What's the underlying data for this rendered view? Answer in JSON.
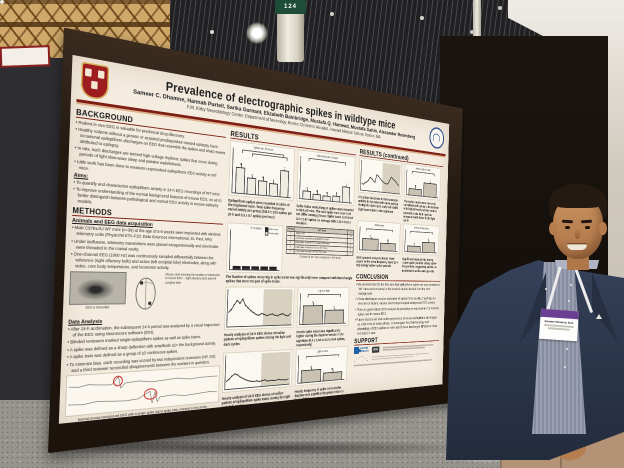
{
  "scene": {
    "column_sign_label": "124",
    "badge": {
      "name": "Sameer Dhamne, M.S."
    }
  },
  "poster": {
    "header": {
      "title": "Prevalence of electrographic spikes in wildtype mice",
      "authors": "Sameer C. Dhamne, Hannah Purtell, Sarika Gurnani, Elizabeth Bainbridge, Mustafa Q. Hameed, Mustafa Sahin, Alexander Rotenberg",
      "affiliation": "F.M. Kirby Neurobiology Center, Department of Neurology, Boston Children's Hospital, Harvard Medical School, Boston, MA"
    },
    "background": {
      "heading": "BACKGROUND",
      "bullets": [
        "Rodent in vivo EEG is valuable for preclinical drug discovery.",
        "Healthy rodents without a genetic or acquired predisposition toward epilepsy have occasional epileptiform discharges on EEG that resemble the spikes and sharp waves attributed to epilepsy.",
        "In rats, such discharges are termed high-voltage rhythmic spikes that occur during periods of light slow-wave sleep and passive wakefulness.",
        "Little work has been done to measure unprovoked epileptiform EEG activity in WT mice."
      ],
      "aims_label": "Aims:",
      "aims": [
        "To quantify and characterize epileptiform activity in 24-h EEG recordings of WT mice",
        "To improve understanding of the normal background features of mouse EEG, so as to better distinguish between pathological and normal EEG activity in mouse epilepsy models."
      ]
    },
    "methods": {
      "heading": "METHODS",
      "sub1": "Animals and EEG data acquisition",
      "bullets1": [
        "Male C57BL/6J WT mice (n=36) at the age of 5-6 weeks were implanted with wireless telemetry units (PhysioTel ETA-F10; Data Sciences International, St. Paul, MN).",
        "Under isoflurane, telemetry transmitters were placed intraperitoneally and electrodes were threaded in the cranial cavity.",
        "One-channel EEG (1000 Hz) was continuously sampled differentially between the reference (right olfactory bulb) and active (left occipital lobe) electrodes, along with video, core body temperature, and locomotor activity."
      ],
      "eeg_label": "EEG to transmitter",
      "skull_caption": "Mouse skull showing the location of electrodes to record EEG – right olfactory bulb and left occipital lobe",
      "sub2": "Data Analysis",
      "bullets2": [
        "After 24-h acclimation, the subsequent 24-h period was analyzed by a visual inspection of the EEG using Neuroscore software (DSI).",
        "Blinded reviewers marked single epileptiform spikes as well as spike trains.",
        "A spike was defined as a sharp deflection with amplitude ≥2× the background activity.",
        "A spike train was defined as a group of ≥3 continuous spikes.",
        "To minimize bias, each recording was scored by two independent reviewers (HP, SG) and a third reviewer reconciled disagreements between the markers in question."
      ],
      "trace_caption": "Normal mouse background EEG with a single spike and a spike train, marked in red circles"
    },
    "results": {
      "heading": "RESULTS",
      "fig1_title": "Spikes per 24 hours",
      "fig2_title": "Spike trains per 24 hours",
      "cap1": "Epileptiform spikes were recorded in 100% of the implanted mice. Total spike frequency varied widely per group (240.5 ± 13.5 spikes per 24 h and 0.3 ± 0.7 spikes per hour)",
      "cap2": "Spike trains containing ≥3 spikes were recorded in 90% of mice. The total spike train count did not differ among groups. Spike trains contained 3.4 ± 0.67 spikes on average with 0.42 ± 0.02 s duration.",
      "fig3_title": "% of spikes",
      "legend_single": "Single spikes",
      "legend_train": "Spike trains",
      "cap3": "The fraction of spikes occurring in spike trains was significantly lower compared with that of single spikes that were not part of spike trains.",
      "table": {
        "rows": [
          [
            "Group",
            "WT mice",
            "n"
          ],
          [
            "1",
            "Naive C57",
            "12"
          ],
          [
            "2",
            "Littermate controls of Shank3 KO mice",
            "7"
          ],
          [
            "3",
            "Littermate controls of Cntnap2 KO mice",
            "6"
          ],
          [
            "4",
            "Littermate controls of Dnm1 KO mice",
            "6"
          ],
          [
            "5",
            "Littermate controls of Fmr1 KO mice",
            "5"
          ]
        ],
        "caption": "Cohorts of WT mice analyzed in the study"
      },
      "fig4_title": "Hourly spikes (24 h)",
      "fig5_title": "Light vs dark",
      "cap4": "Hourly analysis of 24-h EEG shows circadian pattern of epileptiform spikes during the light and dark cycles",
      "cap5": "Hourly spike count was significantly higher during the daytime versus in the nighttime (0.4 ± 0.04 vs 0.3 ± 0.04 spikes, respectively)",
      "fig6_title": "Hourly spike trains (24 h)",
      "fig7_title": "Light vs dark",
      "cap6": "Hourly analysis of 24-h EEG shows circadian pattern of epileptiform spike trains during the light and dark cycles",
      "cap7": "Hourly frequency of spike trains in the daytime was significantly greater than in the nighttime"
    },
    "results2": {
      "heading": "RESULTS (continued)",
      "figA_title": "Hourly activity (24 h)",
      "figB_title": "Activity: light vs dark",
      "capA": "Circadian variations in the locomotor activity in the mice with more activity during the dark cycle and predictable high locomotion in the nighttime",
      "capB": "The spike counts were inversely correlated with animal's locomotion with higher hourly activity counts reported in the dark cycle as compared with those in the light cycle",
      "figC_title": "Delta power",
      "figD_title": "Activity during spikes",
      "capC": "EEG spectral analysis shows lower power in the delta frequency band (1–4 Hz) during 'active spike' periods",
      "capD": "Significant hyperactivity during 'active spike' periods versus spike-free periods, suggesting spikes are incidental to active wake periods"
    },
    "conclusion": {
      "heading": "CONCLUSION",
      "bullets": [
        "We demonstrate for the first time that epileptiform spikes are very common in WT mice and universal in the studied strains derived from the C57 background.",
        "These discharges may be indicative of epileptiform activity or perhaps an element of normal murine electrophysiological background EEG activity.",
        "This can guide future EEG analysis by providing an expectation of a nominal spike rate in mouse EEG.",
        "Future studies will look at the prevalence of mouse epileptiform discharges as a function of sleep phase, to investigate the pharmacology and physiology of EEG spikes in mice and if these discharges differ from those recorded in rats."
      ]
    },
    "support": {
      "heading": "SUPPORT",
      "autism_line1": "AUTISM",
      "autism_line2": "SPEAKS",
      "nih": "NIH"
    },
    "charts": {
      "fig1_bars": [
        62,
        38,
        34,
        30,
        66
      ],
      "fig2_bars": [
        18,
        12,
        10,
        12,
        40
      ],
      "stack": [
        [
          34,
          58
        ],
        [
          38,
          52
        ],
        [
          42,
          48
        ],
        [
          34,
          58
        ],
        [
          46,
          42
        ]
      ],
      "line_spikes": [
        38,
        46,
        60,
        72,
        64,
        76,
        58,
        50,
        42,
        36,
        30,
        28,
        33,
        30,
        26,
        29,
        31,
        27,
        25,
        29,
        31,
        26,
        24,
        31
      ],
      "ld_spikes": [
        68,
        48
      ],
      "line_trains": [
        22,
        28,
        38,
        44,
        40,
        32,
        27,
        22,
        18,
        16,
        14,
        16,
        13,
        15,
        17,
        12,
        14,
        13,
        12,
        15,
        13,
        12,
        11,
        14
      ],
      "ld_trains": [
        52,
        34
      ],
      "line_loco": [
        22,
        18,
        24,
        28,
        34,
        46,
        42,
        34,
        30,
        58,
        54,
        46,
        40,
        34,
        30,
        28,
        30,
        42,
        56,
        50,
        46,
        40,
        32,
        26
      ],
      "ld_loco": [
        28,
        62
      ],
      "delta_bars": [
        60,
        40
      ],
      "hyper_bars": [
        30,
        58
      ]
    }
  }
}
